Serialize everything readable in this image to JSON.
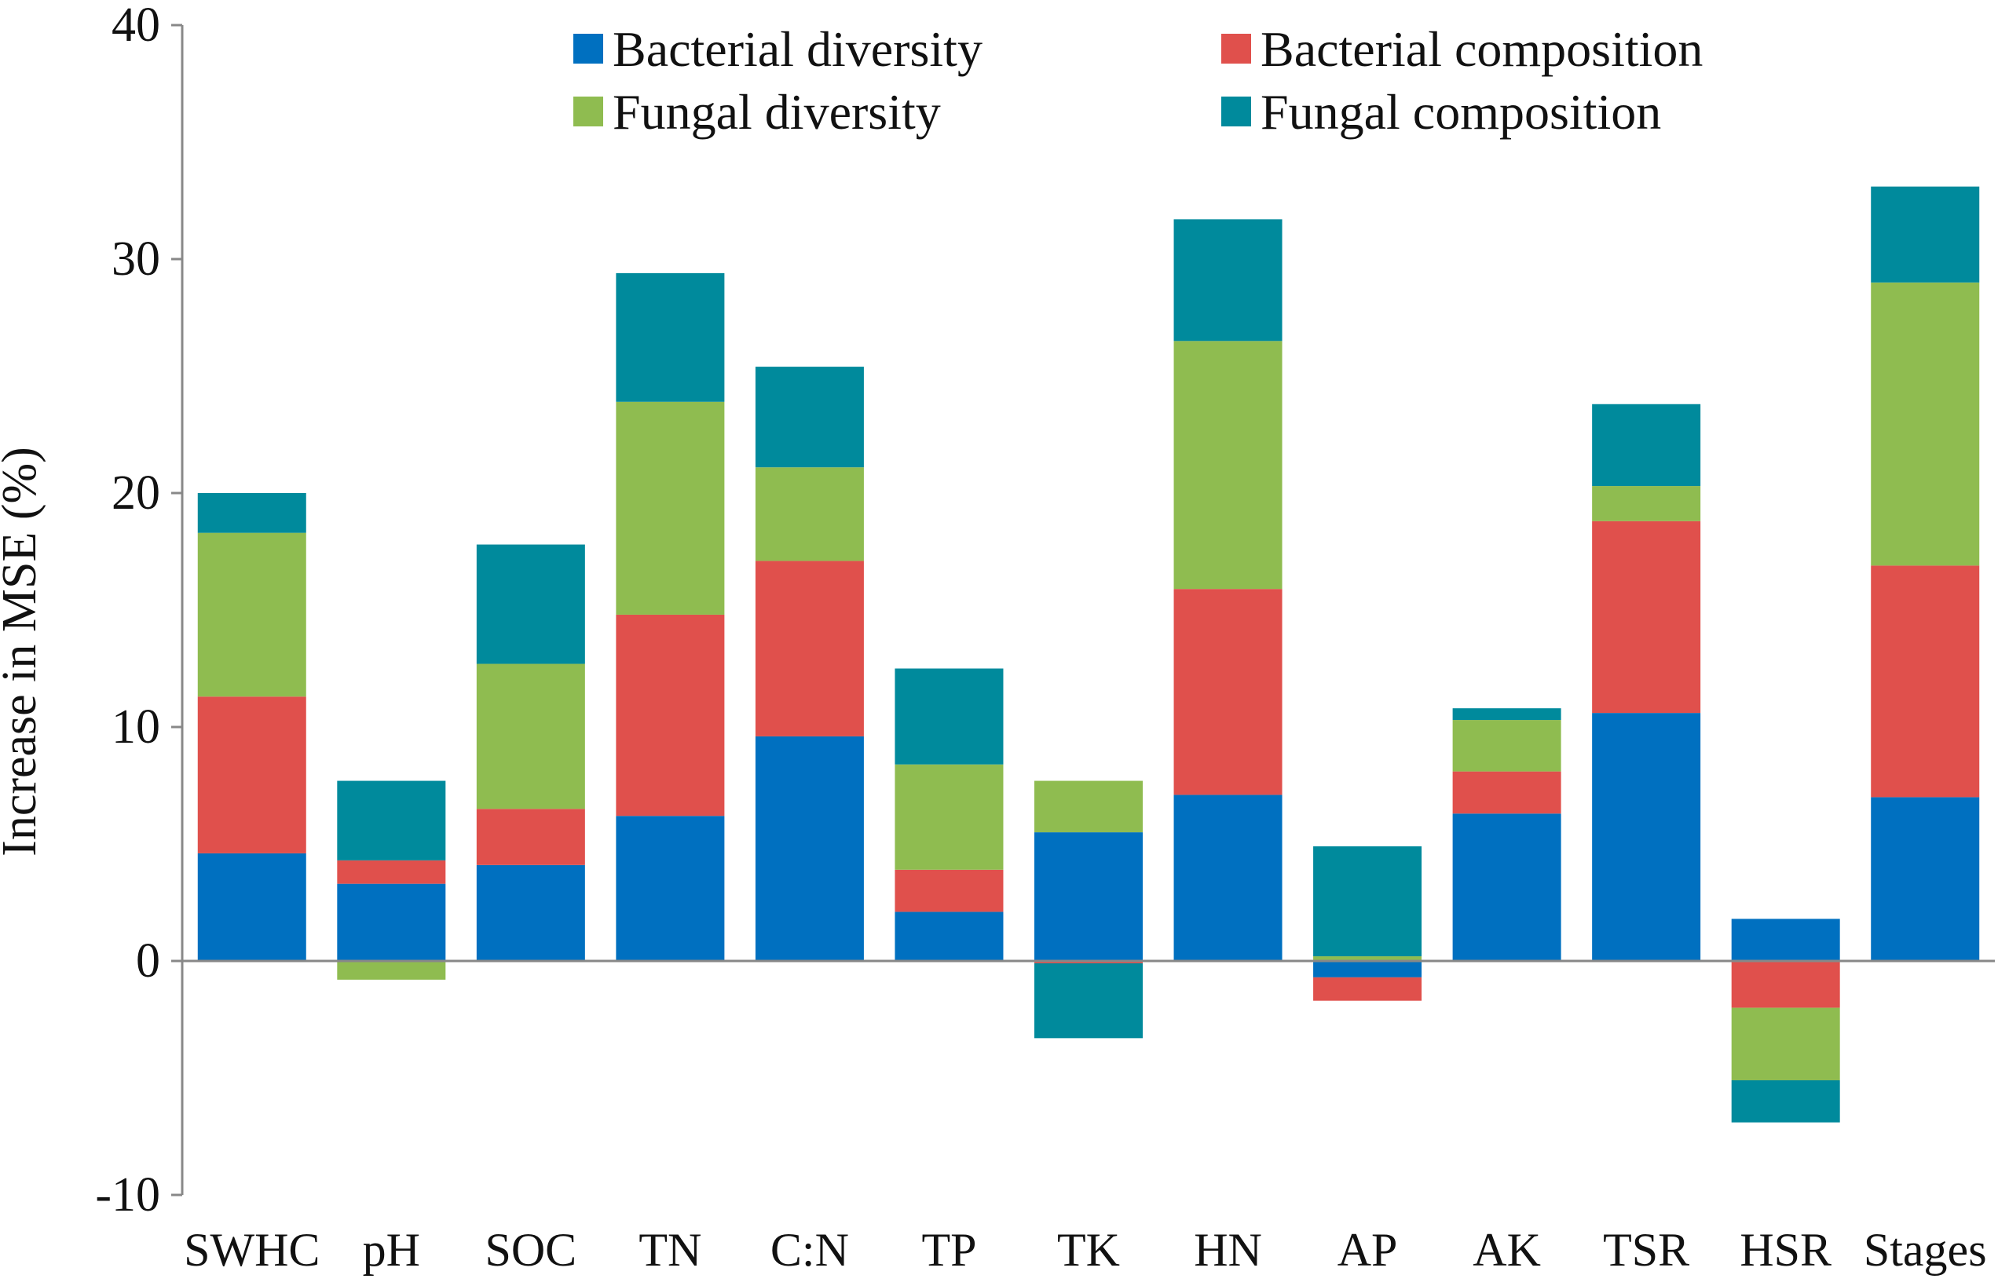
{
  "chart_data": {
    "type": "bar",
    "stacked": true,
    "title": "",
    "xlabel": "",
    "ylabel": "Increase in MSE (%)",
    "ylim": [
      -10,
      40
    ],
    "yticks": [
      -10,
      0,
      10,
      20,
      30,
      40
    ],
    "yticks_text": [
      "-10",
      "0",
      "10",
      "20",
      "30",
      "40"
    ],
    "grid": false,
    "legend_position": "top",
    "categories": [
      "SWHC",
      "pH",
      "SOC",
      "TN",
      "C:N",
      "TP",
      "TK",
      "HN",
      "AP",
      "AK",
      "TSR",
      "HSR",
      "Stages"
    ],
    "series": [
      {
        "name": "Bacterial diversity",
        "color": "#0070C0",
        "values": [
          4.6,
          3.3,
          4.1,
          6.2,
          9.6,
          2.1,
          5.5,
          7.1,
          -0.7,
          6.3,
          10.6,
          1.8,
          7.0
        ]
      },
      {
        "name": "Bacterial composition",
        "color": "#E0504C",
        "values": [
          6.7,
          1.0,
          2.4,
          8.6,
          7.5,
          1.8,
          -0.1,
          8.8,
          -1.0,
          1.8,
          8.2,
          -2.0,
          9.9
        ]
      },
      {
        "name": "Fungal diversity",
        "color": "#8FBC50",
        "values": [
          7.0,
          -0.8,
          6.2,
          9.1,
          4.0,
          4.5,
          2.2,
          10.6,
          0.2,
          2.2,
          1.5,
          -3.1,
          12.1
        ]
      },
      {
        "name": "Fungal composition",
        "color": "#008A9C",
        "values": [
          1.7,
          3.4,
          5.1,
          5.5,
          4.3,
          4.1,
          -3.2,
          5.2,
          4.7,
          0.5,
          3.5,
          -1.8,
          4.1
        ]
      }
    ]
  }
}
